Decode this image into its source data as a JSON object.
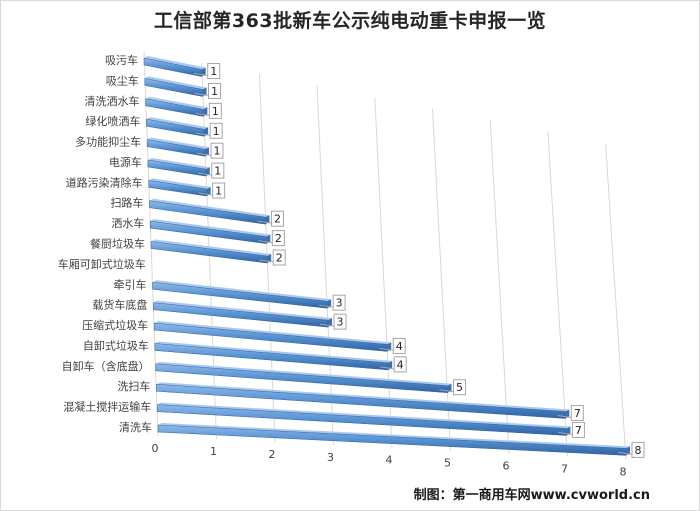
{
  "chart_data": {
    "type": "bar",
    "orientation": "horizontal",
    "title": "工信部第363批新车公示纯电动重卡申报一览",
    "credit": "制图：第一商用车网www.cvworld.cn",
    "categories": [
      "吸污车",
      "吸尘车",
      "清洗洒水车",
      "绿化喷洒车",
      "多功能抑尘车",
      "电源车",
      "道路污染清除车",
      "扫路车",
      "洒水车",
      "餐厨垃圾车",
      "车厢可卸式垃圾车",
      "牵引车",
      "载货车底盘",
      "压缩式垃圾车",
      "自卸式垃圾车",
      "自卸车（含底盘）",
      "洗扫车",
      "混凝土搅拌运输车",
      "清洗车"
    ],
    "values": [
      1,
      1,
      1,
      1,
      1,
      1,
      1,
      2,
      2,
      2,
      0,
      3,
      3,
      4,
      4,
      5,
      7,
      7,
      8
    ],
    "data_labels": [
      "1",
      "1",
      "1",
      "1",
      "1",
      "1",
      "1",
      "2",
      "2",
      "2",
      "",
      "3",
      "3",
      "4",
      "4",
      "5",
      "7",
      "7",
      "8"
    ],
    "xticks": [
      "0",
      "1",
      "2",
      "3",
      "4",
      "5",
      "6",
      "7",
      "8"
    ],
    "xlim": [
      0,
      8
    ],
    "grid": true,
    "bar_color": "#4a86c8"
  }
}
